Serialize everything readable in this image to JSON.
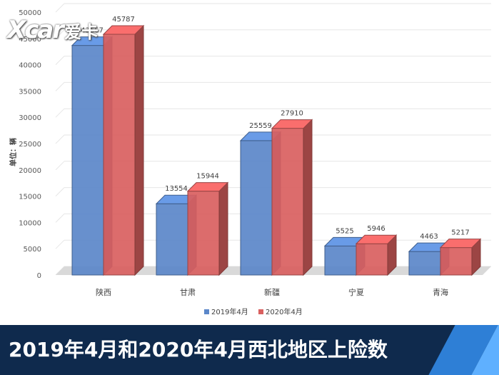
{
  "logo": {
    "latin": "Xcar",
    "chinese": "爱卡"
  },
  "banner": {
    "title": "2019年4月和2020年4月西北地区上险数"
  },
  "chart_data": {
    "type": "bar",
    "title": "",
    "ylabel": "单位：辆",
    "xlabel": "",
    "ylim": [
      0,
      50000
    ],
    "yticks": [
      0,
      5000,
      10000,
      15000,
      20000,
      25000,
      30000,
      35000,
      40000,
      45000,
      50000
    ],
    "categories": [
      "陕西",
      "甘肃",
      "新疆",
      "宁夏",
      "青海"
    ],
    "series": [
      {
        "name": "2019年4月",
        "color": "#5b87c9",
        "values": [
          43667,
          13554,
          25559,
          5525,
          4463
        ]
      },
      {
        "name": "2020年4月",
        "color": "#d9605f",
        "values": [
          45787,
          15944,
          27910,
          5946,
          5217
        ]
      }
    ],
    "legend": "bottom",
    "grid": true,
    "style": "3d-column"
  }
}
